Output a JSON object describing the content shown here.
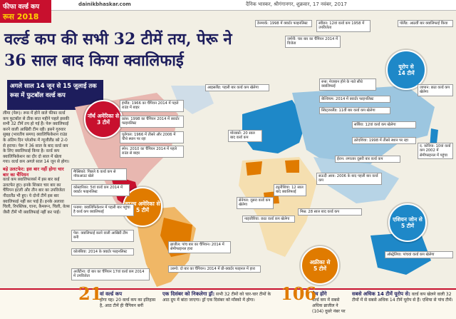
{
  "header": {
    "logo_line1": "फीफा वर्ल्ड कप",
    "logo_line2": "रूस 2018",
    "site": "dainikbhaskar.com",
    "dateline": "दैनिक भास्कर, श्रीगंगानगर, शुक्रवार, 17 नवंबर, 2017"
  },
  "headline": "वर्ल्ड कप की सभी 32 टीमें तय, पेरू ने 36 साल बाद किया क्वालिफाई",
  "subhead": "अगले साल 14 जून से 15 जुलाई तक रूस में फुटबॉल वर्ल्ड कप",
  "intro": "लीमा (पेरू)। रूस में होने वाले फीफा वर्ल्ड कप फुटबॉल से ठीक सात महीने पहले इसकी सभी 32 टीमें तय हो गई हैं। पेरू क्वालिफाई करने वाली आखिरी टीम रही। इसने गुरुवार सुबह (भारतीय समय) क्वालिफिकेशन राउंड के अंतिम दिन प्लेऑफ में न्यूजीलैंड को 2-0 से हराया। पेरू ने 36 साल के बाद वर्ल्ड कप के लिए क्वालिफाई किया है। वर्ल्ड कप क्वालिफिकेशन का दौर दो साल में खेला गया। वर्ल्ड कप अगले साल 14 जून से होगा।",
  "upset": {
    "title": "बड़े उलटफेर: इस बार नहीं होगा चार बार का चैंपियन",
    "text": "वर्ल्ड कप क्वालिफायर्स में इस बार कई उलटफेर हुए। इनके शिकार चार बार का चैंपियन इटली और तीन बार का उपविजेता नीदरलैंड भी हुए। ये दोनों टीमें इस बार क्वालिफाई नहीं कर पाई हैं। इनके अलावा चिली, रिपब्लिक, घाना, कैमरून, चिली, वेल्स जैसी टीमें भी क्वालिफाई नहीं कर पाईं।"
  },
  "regions": [
    {
      "name": "नॉर्थ अमेरिका से",
      "count": "3 टीमें",
      "color": "#c8102e"
    },
    {
      "name": "साउथ अमेरिका से",
      "count": "5 टीमें",
      "color": "#e07b00"
    },
    {
      "name": "यूरोप से",
      "count": "14 टीमें",
      "color": "#1e88c8"
    },
    {
      "name": "अफ्रीका से",
      "count": "5 टीमें",
      "color": "#e07b00"
    },
    {
      "name": "एशियन जोन से",
      "count": "5 टीमें",
      "color": "#1e88c8"
    }
  ],
  "teams": {
    "mexico": "मैक्सिको: पिछले 6 वर्ल्ड कप से नॉकआउट खेले",
    "costarica": "कोस्टारिका: 5वां वर्ल्ड कप 2014 में क्वार्टर फाइनलिस्ट",
    "panama": "पनामा: क्वालिफिकेशन में पहली बार पहुंचा है वर्ल्ड कप क्वालिफाई",
    "peru": "पेरू: क्वालिफाई करने वाली आखिरी टीम बनी",
    "colombia": "कोलंबिया: 2014 के क्वार्टर फाइनलिस्ट",
    "argentina": "अर्जेंटीना: दो बार का चैंपियन 17वां वर्ल्ड कप 2014 में उपविजेता",
    "brazil": "ब्राजील: पांच बार का चैंपियन। 2014 में सेमीफाइनल हारा",
    "uruguay": "उरुग्वे: दो बार का चैंपियन। 2014 में प्री-क्वार्टर फाइनल में हारा",
    "iceland": "आइसलैंड: पहली बार वर्ल्ड कप खेलेगा",
    "england": "इंग्लैंड: 1966 का चैंपियन 2014 में पहले राउंड में बाहर",
    "france": "फ्रांस: 1998 का चैंपियन 2014 में क्वार्टर फाइनलिस्ट",
    "portugal": "पुर्तगाल: 1966 में तीसरे और 2006 में चौथे स्थान पर रहा",
    "spain": "स्पेन: 2010 का चैंपियन 2014 में पहले राउंड से बाहर",
    "denmark": "डेनमार्क: 1998 में क्वार्टर फाइनलिस्ट",
    "sweden": "स्वीडन: 12वां वर्ल्ड कप 1958 में उपविजेता",
    "germany": "जर्मनी: चार बार का चैंपियन 2014 में विजेता",
    "poland": "पोलैंड: आठवीं बार क्वालिफाई किया",
    "russia": "रूस: मेजबान होने के नाते सीधे क्वालिफाई",
    "belgium": "बेल्जियम: 2014 में क्वार्टर फाइनलिस्ट",
    "switzerland": "स्विट्जरलैंड: 11वीं बार वर्ल्ड कप खेलेगा",
    "serbia": "सर्बिया: 12वां वर्ल्ड कप खेलेगा",
    "croatia": "क्रोएशिया: 1998 में तीसरे स्थान पर रहा",
    "morocco": "मोरक्को: 20 साल बाद वर्ल्ड कप",
    "tunisia": "ट्यूनीशिया: 12 साल बाद क्वालिफाई",
    "egypt": "मिस्र: 28 साल बाद वर्ल्ड कप",
    "senegal": "सेनेगल: दूसरा वर्ल्ड कप खेलेगा",
    "nigeria": "नाइजीरिया: छठा वर्ल्ड कप खेलेगा",
    "saudi": "सऊदी अरब: 2006 के बाद पहली बार वर्ल्ड कप",
    "iran": "ईरान: लगातार दूसरी बार वर्ल्ड कप",
    "japan": "जापान: छठा वर्ल्ड कप खेलेगा",
    "korea": "द. कोरिया: 10वां वर्ल्ड कप 2002 में सेमीफाइनल में पहुंचा",
    "australia": "ऑस्ट्रेलिया: पांचवां वर्ल्ड कप खेलेगा"
  },
  "bottom": [
    {
      "num": "21",
      "title": "वां वर्ल्ड कप",
      "text": "होगा यह। 20 वर्ल्ड कप का इतिहास है, आठ टीमें ही चैंपियन बनीं"
    },
    {
      "num": "",
      "title": "एक दिसंबर को निकलेगा ड्रॉ:",
      "text": "सभी 32 टीमों को चार-चार टीमों के आठ ग्रुप में बांटा जाएगा। ड्रॉ एक दिसंबर को मॉस्को में होगा।"
    },
    {
      "num": "106",
      "title": "मैच होंगे",
      "text": "वर्ल्ड कप में सबसे अधिक ब्राजील ने (104) दूसरे नंबर पर"
    },
    {
      "num": "",
      "title": "सबसे अधिक 14 टीमें यूरोप से:",
      "text": "वर्ल्ड कप खेलने वाली 32 टीमों में से सबसे अधिक 14 टीमें यूरोप से हैं। एशिया से पांच टीमें।"
    }
  ]
}
